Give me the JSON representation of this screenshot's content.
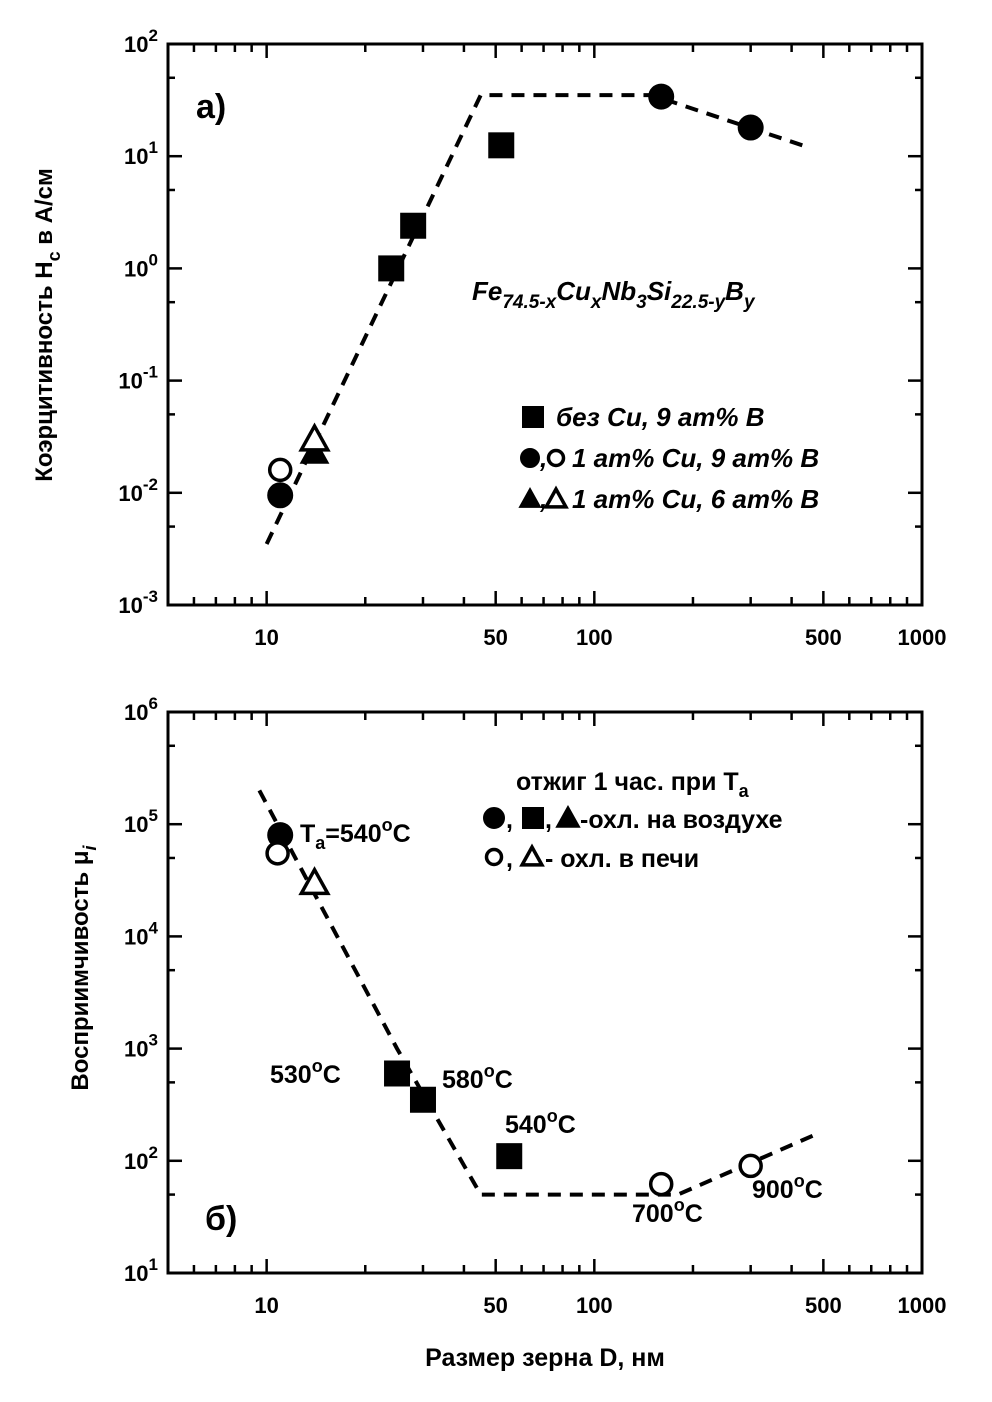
{
  "chart_data": [
    {
      "type": "scatter",
      "panel_label": "а)",
      "ylabel": "Коэрцитивность H",
      "ylabel_sub": "c",
      "ylabel_tail": " в А/см",
      "xscale": "log",
      "yscale": "log",
      "xlim": [
        5,
        1000
      ],
      "ylim": [
        0.001,
        100
      ],
      "x_ticks": [
        "10",
        "50",
        "100",
        "500",
        "1000"
      ],
      "y_ticks": [
        {
          "base": "10",
          "exp": "-3"
        },
        {
          "base": "10",
          "exp": "-2"
        },
        {
          "base": "10",
          "exp": "-1"
        },
        {
          "base": "10",
          "exp": "0"
        },
        {
          "base": "10",
          "exp": "1"
        },
        {
          "base": "10",
          "exp": "2"
        }
      ],
      "formula": {
        "parts": [
          {
            "t": "Fe",
            "s": ""
          },
          {
            "t": "74.5-x",
            "s": "sub"
          },
          {
            "t": "Cu",
            "s": ""
          },
          {
            "t": "x",
            "s": "sub"
          },
          {
            "t": "Nb",
            "s": ""
          },
          {
            "t": "3",
            "s": "sub"
          },
          {
            "t": "Si",
            "s": ""
          },
          {
            "t": "22.5-y",
            "s": "sub"
          },
          {
            "t": "B",
            "s": ""
          },
          {
            "t": "y",
            "s": "sub"
          }
        ]
      },
      "legend": [
        {
          "markers": [
            "square-filled"
          ],
          "label": "без Cu, 9 ат% B"
        },
        {
          "markers": [
            "circle-filled",
            "circle-open"
          ],
          "label": "1 ат% Cu, 9 ат% B"
        },
        {
          "markers": [
            "triangle-filled",
            "triangle-open"
          ],
          "label": "1 ат% Cu, 6 ат% B"
        }
      ],
      "series": [
        {
          "marker": "square-filled",
          "x": [
            24,
            28,
            52
          ],
          "y": [
            1.0,
            2.4,
            12.5
          ]
        },
        {
          "marker": "circle-filled",
          "x": [
            11,
            160,
            300
          ],
          "y": [
            0.0095,
            34,
            18
          ]
        },
        {
          "marker": "circle-open",
          "x": [
            11
          ],
          "y": [
            0.016
          ]
        },
        {
          "marker": "triangle-filled",
          "x": [
            14
          ],
          "y": [
            0.023
          ]
        },
        {
          "marker": "triangle-open",
          "x": [
            14
          ],
          "y": [
            0.03
          ]
        }
      ],
      "trend": {
        "x": [
          10,
          45,
          150,
          450
        ],
        "y": [
          0.0035,
          35,
          35,
          12
        ],
        "style": "dashed"
      }
    },
    {
      "type": "scatter",
      "panel_label": "б)",
      "ylabel": "Восприимчивость μ",
      "ylabel_sub": "i",
      "xlabel": "Размер зерна D, нм",
      "xscale": "log",
      "yscale": "log",
      "xlim": [
        5,
        1000
      ],
      "ylim": [
        10,
        1000000
      ],
      "x_ticks": [
        "10",
        "50",
        "100",
        "500",
        "1000"
      ],
      "y_ticks": [
        {
          "base": "10",
          "exp": "1"
        },
        {
          "base": "10",
          "exp": "2"
        },
        {
          "base": "10",
          "exp": "3"
        },
        {
          "base": "10",
          "exp": "4"
        },
        {
          "base": "10",
          "exp": "5"
        },
        {
          "base": "10",
          "exp": "6"
        }
      ],
      "legend_title": {
        "t": "отжиг 1 час. при T",
        "sub": "a"
      },
      "legend": [
        {
          "markers": [
            "circle-filled",
            "square-filled",
            "triangle-filled"
          ],
          "label": "-охл. на воздухе"
        },
        {
          "markers": [
            "circle-open",
            "triangle-open"
          ],
          "label": " - охл. в печи"
        }
      ],
      "annotations": [
        {
          "t": "T",
          "sub": "a",
          "tail": "=540",
          "sup": "o",
          "end": "C"
        },
        {
          "t": "530",
          "sup": "o",
          "end": "C"
        },
        {
          "t": "580",
          "sup": "o",
          "end": "C"
        },
        {
          "t": "540",
          "sup": "o",
          "end": "C"
        },
        {
          "t": "700",
          "sup": "o",
          "end": "C"
        },
        {
          "t": "900",
          "sup": "o",
          "end": "C"
        }
      ],
      "series": [
        {
          "marker": "circle-filled",
          "x": [
            11
          ],
          "y": [
            80000
          ]
        },
        {
          "marker": "circle-open",
          "x": [
            10.8
          ],
          "y": [
            55000
          ]
        },
        {
          "marker": "triangle-open",
          "x": [
            14
          ],
          "y": [
            30000
          ]
        },
        {
          "marker": "square-filled",
          "x": [
            25,
            30,
            55
          ],
          "y": [
            600,
            350,
            110
          ]
        },
        {
          "marker": "circle-open",
          "x": [
            160,
            300
          ],
          "y": [
            62,
            90
          ]
        }
      ],
      "trend": {
        "x": [
          9.5,
          25,
          45,
          180,
          470
        ],
        "y": [
          200000,
          1000,
          50,
          50,
          170
        ],
        "style": "dashed"
      }
    }
  ]
}
